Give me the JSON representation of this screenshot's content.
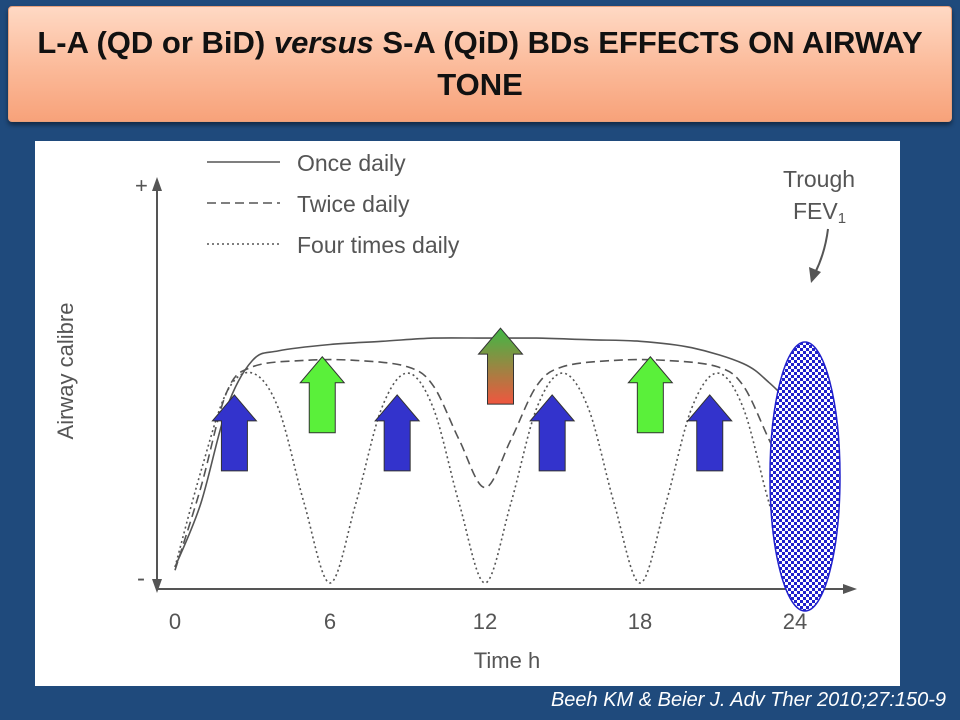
{
  "slide": {
    "title_part1": "L-A (QD or BiD) ",
    "title_emph": "versus",
    "title_part2": " S-A (QiD) BDs EFFECTS ON AIRWAY TONE",
    "citation": "Beeh KM & Beier J. Adv Ther 2010;27:150-9"
  },
  "colors": {
    "background": "#1f4a7c",
    "title_box": "#f9b895",
    "long_acting_arrow": "#5af03a",
    "short_acting_arrow": "#3333cc",
    "mixed_arrow_top": "#3fb845",
    "mixed_arrow_bottom": "#f0563f",
    "trough_ellipse": "#2020cc"
  },
  "chart_data": {
    "type": "line",
    "xlabel": "Time h",
    "ylabel": "Airway calibre",
    "x_ticks": [
      0,
      6,
      12,
      18,
      24
    ],
    "xlim": [
      0,
      25
    ],
    "y_axis_marks": {
      "top": "+",
      "bottom": "-"
    },
    "ylim": [
      0,
      100
    ],
    "legend_position": "top-left",
    "series": [
      {
        "name": "Once daily",
        "style": "solid",
        "points": [
          [
            0,
            5
          ],
          [
            1,
            25
          ],
          [
            2,
            55
          ],
          [
            3,
            70
          ],
          [
            4,
            73
          ],
          [
            6,
            75
          ],
          [
            8,
            76
          ],
          [
            10,
            77
          ],
          [
            12,
            77
          ],
          [
            14,
            77
          ],
          [
            16,
            76.5
          ],
          [
            18,
            76
          ],
          [
            20,
            74
          ],
          [
            22,
            69
          ],
          [
            23,
            63
          ],
          [
            24,
            55
          ]
        ]
      },
      {
        "name": "Twice daily",
        "style": "dashed",
        "points": [
          [
            0,
            4
          ],
          [
            1,
            30
          ],
          [
            2,
            60
          ],
          [
            3,
            68
          ],
          [
            5,
            70
          ],
          [
            7,
            70
          ],
          [
            9,
            68
          ],
          [
            10,
            62
          ],
          [
            11,
            45
          ],
          [
            12,
            30
          ],
          [
            13,
            45
          ],
          [
            14,
            62
          ],
          [
            15,
            68
          ],
          [
            17,
            70
          ],
          [
            19,
            70
          ],
          [
            21,
            68
          ],
          [
            22,
            62
          ],
          [
            23,
            45
          ],
          [
            24,
            28
          ]
        ]
      },
      {
        "name": "Four times daily",
        "style": "dotted",
        "points": [
          [
            0,
            5
          ],
          [
            1,
            35
          ],
          [
            2,
            60
          ],
          [
            3,
            66
          ],
          [
            4,
            55
          ],
          [
            5,
            25
          ],
          [
            6,
            0
          ],
          [
            7,
            25
          ],
          [
            8,
            55
          ],
          [
            9,
            66
          ],
          [
            10,
            55
          ],
          [
            11,
            25
          ],
          [
            12,
            0
          ],
          [
            13,
            25
          ],
          [
            14,
            55
          ],
          [
            15,
            66
          ],
          [
            16,
            55
          ],
          [
            17,
            25
          ],
          [
            18,
            0
          ],
          [
            19,
            25
          ],
          [
            20,
            55
          ],
          [
            21,
            66
          ],
          [
            22,
            55
          ],
          [
            23,
            25
          ],
          [
            24,
            0
          ]
        ]
      }
    ],
    "annotations": {
      "trough_line1": "Trough",
      "trough_line2": "FEV",
      "trough_sub": "1"
    },
    "arrows": [
      {
        "kind": "short-acting",
        "x": 2.3,
        "level": 56
      },
      {
        "kind": "long-acting",
        "x": 5.7,
        "level": 68
      },
      {
        "kind": "short-acting",
        "x": 8.6,
        "level": 56
      },
      {
        "kind": "mixed",
        "x": 12.6,
        "level": 77
      },
      {
        "kind": "short-acting",
        "x": 14.6,
        "level": 56
      },
      {
        "kind": "long-acting",
        "x": 18.4,
        "level": 68
      },
      {
        "kind": "short-acting",
        "x": 20.7,
        "level": 56
      }
    ],
    "trough_marker": {
      "x": 24,
      "y_low": 0,
      "y_high": 72
    }
  }
}
